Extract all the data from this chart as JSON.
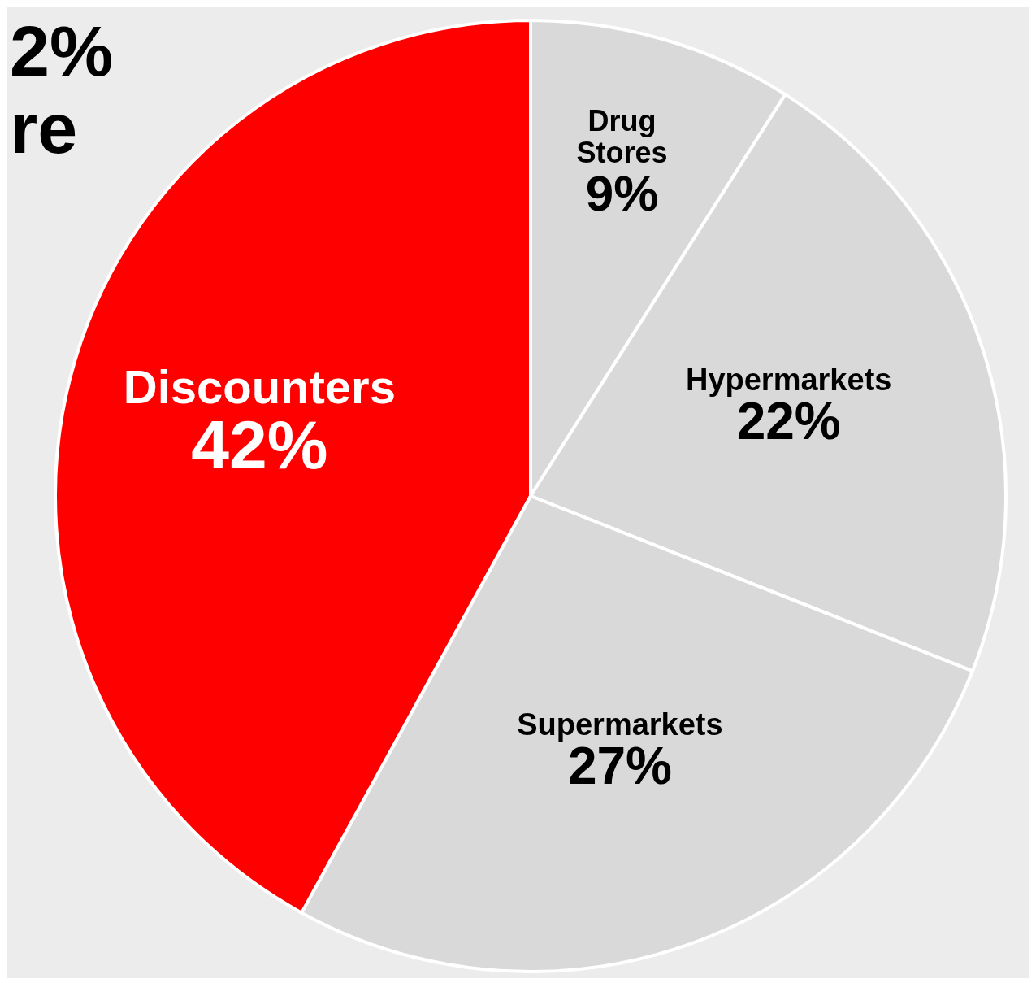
{
  "chart_data": {
    "type": "pie",
    "categories": [
      "Drug Stores",
      "Hypermarkets",
      "Supermarkets",
      "Discounters"
    ],
    "values": [
      9,
      22,
      27,
      42
    ],
    "colors": [
      "#d9d9d9",
      "#d9d9d9",
      "#d9d9d9",
      "#ff0000"
    ],
    "value_labels": [
      "9%",
      "22%",
      "27%",
      "42%"
    ],
    "annotations": [
      "2%",
      "re"
    ]
  }
}
